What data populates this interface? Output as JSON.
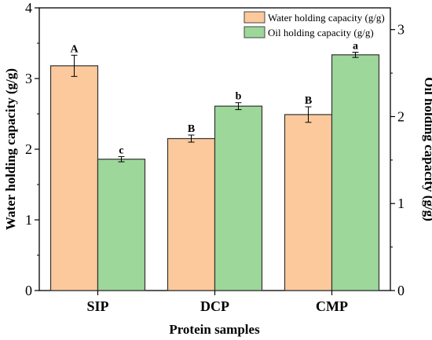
{
  "chart_data": {
    "type": "bar",
    "categories": [
      "SIP",
      "DCP",
      "CMP"
    ],
    "xlabel": "Protein samples",
    "ylabel": "Water holding capacity (g/g)",
    "ylabel_right": "Oil holding capacity (g/g)",
    "ylim": [
      0,
      4
    ],
    "ylim_right": [
      0,
      3.25
    ],
    "yticks": [
      "0",
      "1",
      "2",
      "3",
      "4"
    ],
    "yticks_right": [
      "0",
      "1",
      "2",
      "3"
    ],
    "grid": false,
    "legend_position": "top-right",
    "series": [
      {
        "name": "Water holding capacity (g/g)",
        "axis": "left",
        "color": "#FBC99C",
        "values": [
          3.18,
          2.15,
          2.49
        ],
        "errors": [
          0.15,
          0.05,
          0.11
        ],
        "letters": [
          "A",
          "B",
          "B"
        ]
      },
      {
        "name": "Oil holding capacity (g/g)",
        "axis": "right",
        "color": "#9DD79A",
        "values": [
          1.51,
          2.12,
          2.71
        ],
        "errors": [
          0.03,
          0.04,
          0.03
        ],
        "letters": [
          "c",
          "b",
          "a"
        ]
      }
    ]
  }
}
